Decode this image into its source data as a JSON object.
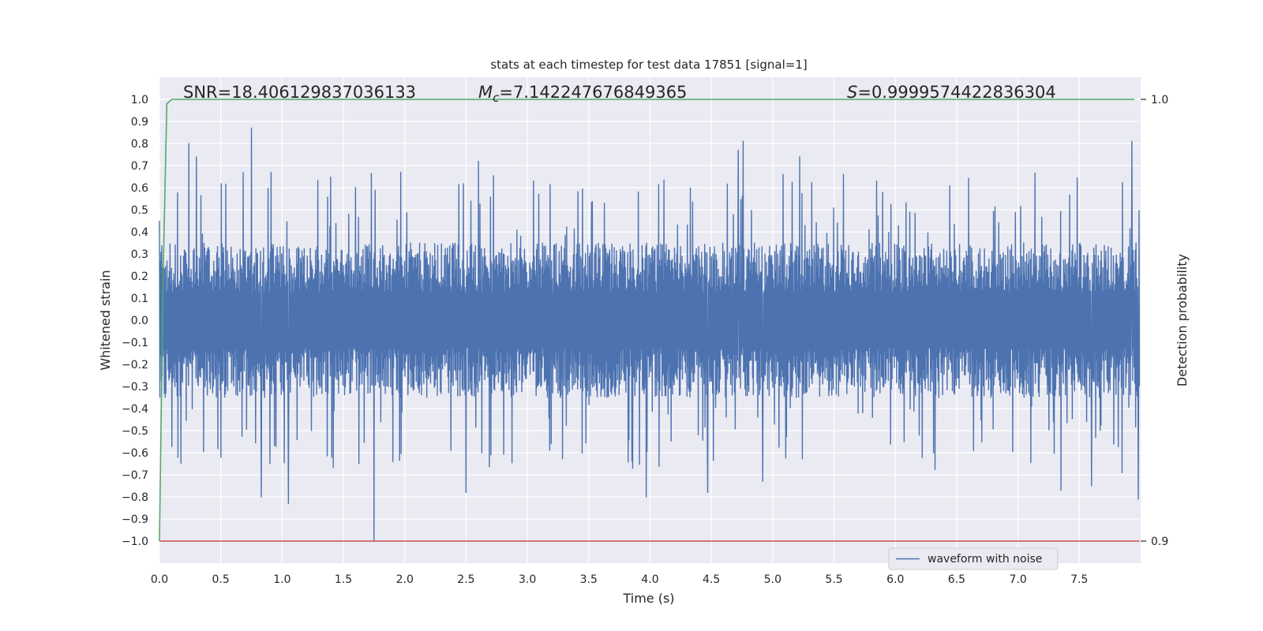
{
  "chart_data": {
    "type": "line",
    "title": "stats at each timestep for test data 17851 [signal=1]",
    "xlabel": "Time (s)",
    "ylabel": "Whitened strain",
    "y2label": "Detection probability",
    "xlim": [
      0.0,
      8.0
    ],
    "ylim": [
      -1.1,
      1.1
    ],
    "y2lim": [
      0.9,
      1.0
    ],
    "xticks": [
      0.0,
      0.5,
      1.0,
      1.5,
      2.0,
      2.5,
      3.0,
      3.5,
      4.0,
      4.5,
      5.0,
      5.5,
      6.0,
      6.5,
      7.0,
      7.5
    ],
    "xtick_labels": [
      "0.0",
      "0.5",
      "1.0",
      "1.5",
      "2.0",
      "2.5",
      "3.0",
      "3.5",
      "4.0",
      "4.5",
      "5.0",
      "5.5",
      "6.0",
      "6.5",
      "7.0",
      "7.5"
    ],
    "yticks": [
      1.0,
      0.9,
      0.8,
      0.7,
      0.6,
      0.5,
      0.4,
      0.3,
      0.2,
      0.1,
      0.0,
      -0.1,
      -0.2,
      -0.3,
      -0.4,
      -0.5,
      -0.6,
      -0.7,
      -0.8,
      -0.9,
      -1.0
    ],
    "ytick_labels": [
      "1.0",
      "0.9",
      "0.8",
      "0.7",
      "0.6",
      "0.5",
      "0.4",
      "0.3",
      "0.2",
      "0.1",
      "0.0",
      "−0.1",
      "−0.2",
      "−0.3",
      "−0.4",
      "−0.5",
      "−0.6",
      "−0.7",
      "−0.8",
      "−0.9",
      "−1.0"
    ],
    "y2ticks": [
      1.0,
      0.9
    ],
    "y2tick_labels": [
      "1.0",
      "0.9"
    ],
    "grid": true,
    "legend": {
      "position": "bottom-right",
      "entries": [
        "waveform with noise"
      ]
    },
    "annotations": {
      "snr": "SNR=18.406129837036133",
      "mc_prefix": "M",
      "mc_sub": "c",
      "mc_value": "=7.142247676849365",
      "s_prefix": "S",
      "s_value": "=0.9999574422836304"
    },
    "series": [
      {
        "name": "waveform with noise",
        "color": "#4c72b0",
        "kind": "noise",
        "x_range": [
          0.0,
          7.99
        ],
        "envelope": {
          "typical": 0.35,
          "max": 1.0,
          "min": -1.0
        },
        "peaks": [
          [
            0.75,
            0.87
          ],
          [
            0.24,
            0.8
          ],
          [
            4.76,
            0.81
          ],
          [
            4.72,
            0.77
          ],
          [
            7.85,
            1.0
          ],
          [
            7.93,
            0.81
          ],
          [
            0.3,
            0.74
          ],
          [
            5.22,
            0.74
          ],
          [
            2.6,
            0.72
          ],
          [
            1.75,
            -1.0
          ],
          [
            0.83,
            -0.8
          ],
          [
            1.05,
            -0.83
          ],
          [
            2.5,
            -0.78
          ],
          [
            3.97,
            -0.8
          ],
          [
            4.47,
            -0.78
          ],
          [
            4.92,
            -0.73
          ],
          [
            7.85,
            -0.69
          ],
          [
            7.98,
            -0.81
          ],
          [
            7.35,
            -0.77
          ],
          [
            7.6,
            -0.75
          ]
        ]
      },
      {
        "name": "",
        "color": "#55a868",
        "axis": "y2",
        "x": [
          0.0,
          0.03,
          0.06,
          0.1,
          7.95
        ],
        "y": [
          0.9,
          0.96,
          0.999,
          1.0,
          1.0
        ]
      },
      {
        "name": "",
        "color": "#c44e52",
        "axis": "y2",
        "x": [
          0.0,
          7.99
        ],
        "y": [
          0.9,
          0.9
        ]
      }
    ]
  }
}
